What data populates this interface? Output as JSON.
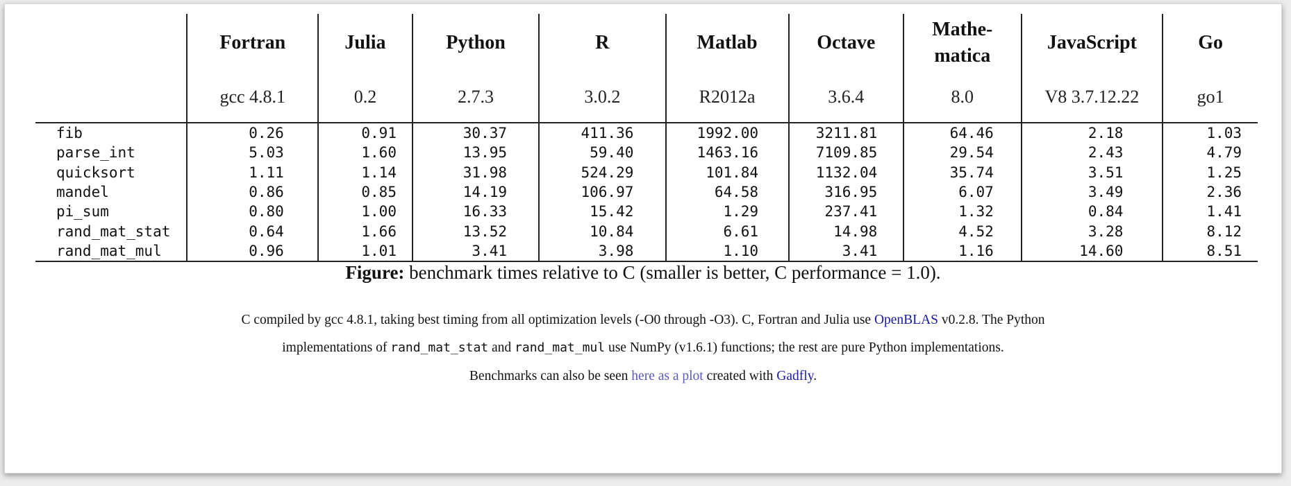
{
  "table": {
    "languages": [
      {
        "name": "Fortran",
        "version": "gcc 4.8.1"
      },
      {
        "name": "Julia",
        "version": "0.2"
      },
      {
        "name": "Python",
        "version": "2.7.3"
      },
      {
        "name": "R",
        "version": "3.0.2"
      },
      {
        "name": "Matlab",
        "version": "R2012a"
      },
      {
        "name": "Octave",
        "version": "3.6.4"
      },
      {
        "name": "Mathe-matica",
        "version": "8.0"
      },
      {
        "name": "JavaScript",
        "version": "V8 3.7.12.22"
      },
      {
        "name": "Go",
        "version": "go1"
      }
    ],
    "rows": [
      {
        "benchmark": "fib",
        "values": [
          "0.26",
          "0.91",
          "30.37",
          "411.36",
          "1992.00",
          "3211.81",
          "64.46",
          "2.18",
          "1.03"
        ]
      },
      {
        "benchmark": "parse_int",
        "values": [
          "5.03",
          "1.60",
          "13.95",
          "59.40",
          "1463.16",
          "7109.85",
          "29.54",
          "2.43",
          "4.79"
        ]
      },
      {
        "benchmark": "quicksort",
        "values": [
          "1.11",
          "1.14",
          "31.98",
          "524.29",
          "101.84",
          "1132.04",
          "35.74",
          "3.51",
          "1.25"
        ]
      },
      {
        "benchmark": "mandel",
        "values": [
          "0.86",
          "0.85",
          "14.19",
          "106.97",
          "64.58",
          "316.95",
          "6.07",
          "3.49",
          "2.36"
        ]
      },
      {
        "benchmark": "pi_sum",
        "values": [
          "0.80",
          "1.00",
          "16.33",
          "15.42",
          "1.29",
          "237.41",
          "1.32",
          "0.84",
          "1.41"
        ]
      },
      {
        "benchmark": "rand_mat_stat",
        "values": [
          "0.64",
          "1.66",
          "13.52",
          "10.84",
          "6.61",
          "14.98",
          "4.52",
          "3.28",
          "8.12"
        ]
      },
      {
        "benchmark": "rand_mat_mul",
        "values": [
          "0.96",
          "1.01",
          "3.41",
          "3.98",
          "1.10",
          "3.41",
          "1.16",
          "14.60",
          "8.51"
        ]
      }
    ]
  },
  "caption": {
    "label": "Figure:",
    "text": " benchmark times relative to C (smaller is better, C performance = 1.0)."
  },
  "note1": {
    "text_a": "C compiled by gcc 4.8.1, taking best timing from all optimization levels (-O0 through -O3). C, Fortran and Julia use ",
    "link_openblas": "OpenBLAS",
    "text_b": " v0.2.8. The Python"
  },
  "note2": {
    "text_a": "implementations of ",
    "code_a": "rand_mat_stat",
    "text_b": " and ",
    "code_b": "rand_mat_mul",
    "text_c": " use NumPy (v1.6.1) functions; the rest are pure Python implementations."
  },
  "note3": {
    "text_a": "Benchmarks can also be seen ",
    "link_plot": "here as a plot",
    "text_b": " created with ",
    "link_gadfly": "Gadfly",
    "text_c": "."
  },
  "colors": {
    "link": "#1a1aa6",
    "link_visited": "#5b5bb8",
    "rule": "#222222"
  }
}
